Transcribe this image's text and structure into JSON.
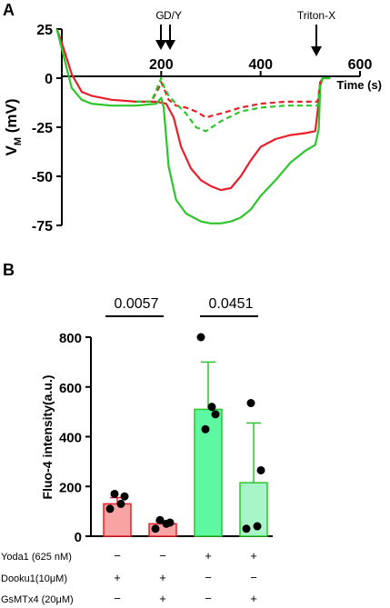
{
  "panel_a": {
    "label": "A",
    "ylabel_main": "V",
    "ylabel_sub": "M",
    "ylabel_unit": " (mV)",
    "xlabel": "Time (s)",
    "yticks": [
      "25",
      "0",
      "-25",
      "-50",
      "-75"
    ],
    "xticks": [
      "200",
      "400",
      "600"
    ],
    "ann_g": "G",
    "ann_dy": "D/Y",
    "ann_triton": "Triton-X"
  },
  "panel_b": {
    "label": "B",
    "ylabel": "Fluo-4 intensity(a.u.)",
    "yticks": [
      "0",
      "200",
      "400",
      "600",
      "800"
    ],
    "pval_1": "0.0057",
    "pval_2": "0.0451",
    "cond_yoda": "Yoda1 (625 nM)",
    "cond_dooku": "Dooku1(10μM)",
    "cond_gsmtx": "GsMTx4 (20μM)",
    "yoda_signs": [
      "−",
      "−",
      "+",
      "+"
    ],
    "dooku_signs": [
      "+",
      "+",
      "−",
      "−"
    ],
    "gsmtx_signs": [
      "−",
      "+",
      "−",
      "+"
    ]
  },
  "chart_data": [
    {
      "type": "line",
      "xlabel": "Time (s)",
      "ylabel": "VM (mV)",
      "xlim": [
        0,
        600
      ],
      "ylim": [
        -75,
        25
      ],
      "colors": {
        "red": "#e8202a",
        "green": "#2cc52c"
      },
      "annotations": [
        {
          "text": "G",
          "x": 195
        },
        {
          "text": "D/Y",
          "x": 220
        },
        {
          "text": "Triton-X",
          "x": 520
        }
      ],
      "series": [
        {
          "style": "solid",
          "color": "red",
          "x": [
            -10,
            0,
            20,
            40,
            60,
            100,
            150,
            190,
            210,
            225,
            240,
            260,
            280,
            300,
            320,
            340,
            360,
            380,
            400,
            430,
            460,
            490,
            510,
            517,
            520,
            525,
            540
          ],
          "y": [
            25,
            18,
            2,
            -7,
            -9,
            -11,
            -12,
            -12,
            -13,
            -20,
            -35,
            -46,
            -52,
            -55,
            -57,
            -56,
            -50,
            -42,
            -35,
            -31,
            -29,
            -28,
            -27,
            -12,
            -2,
            0,
            0
          ]
        },
        {
          "style": "solid",
          "color": "green",
          "x": [
            -10,
            0,
            20,
            40,
            60,
            100,
            150,
            190,
            200,
            205,
            215,
            230,
            250,
            280,
            300,
            320,
            340,
            360,
            380,
            400,
            430,
            460,
            490,
            510,
            517,
            520,
            525,
            540
          ],
          "y": [
            25,
            15,
            -5,
            -11,
            -13,
            -14,
            -14,
            -13,
            -10,
            -15,
            -45,
            -62,
            -69,
            -73,
            -74,
            -74,
            -73,
            -71,
            -67,
            -60,
            -52,
            -43,
            -37,
            -34,
            -26,
            -4,
            0,
            0
          ]
        },
        {
          "style": "dashed",
          "color": "red",
          "x": [
            150,
            180,
            195,
            200,
            205,
            215,
            230,
            250,
            270,
            290,
            320,
            360,
            400,
            450,
            500,
            515,
            520,
            525
          ],
          "y": [
            -12,
            -12,
            -5,
            -2,
            -5,
            -11,
            -14,
            -15,
            -17,
            -20,
            -18,
            -15,
            -13,
            -12,
            -12,
            -12,
            -2,
            0
          ]
        },
        {
          "style": "dashed",
          "color": "green",
          "x": [
            150,
            180,
            195,
            200,
            205,
            215,
            230,
            250,
            270,
            290,
            320,
            360,
            400,
            450,
            500,
            515,
            520,
            525
          ],
          "y": [
            -12,
            -12,
            -3,
            0,
            -4,
            -9,
            -13,
            -18,
            -25,
            -27,
            -22,
            -17,
            -15,
            -14,
            -14,
            -14,
            -2,
            0
          ]
        }
      ]
    },
    {
      "type": "bar",
      "ylabel": "Fluo-4 intensity(a.u.)",
      "ylim": [
        0,
        800
      ],
      "categories": [
        "Dooku1",
        "Dooku1 + GsMTx4",
        "Yoda1",
        "Yoda1 + GsMTx4"
      ],
      "values": [
        130,
        50,
        510,
        215
      ],
      "errors": [
        25,
        10,
        190,
        240
      ],
      "colors": [
        "#f8a4a4",
        "#f8a4a4",
        "#5ef7a2",
        "#a8f5c8"
      ],
      "edge_colors": [
        "#e8202a",
        "#e8202a",
        "#2cc52c",
        "#2cc52c"
      ],
      "points": [
        [
          110,
          160,
          170,
          130
        ],
        [
          30,
          55,
          65,
          50
        ],
        [
          800,
          490,
          430,
          520
        ],
        [
          30,
          265,
          535,
          40
        ]
      ],
      "comparisons": [
        {
          "bars": [
            0,
            1
          ],
          "p": "0.0057"
        },
        {
          "bars": [
            2,
            3
          ],
          "p": "0.0451"
        }
      ]
    }
  ]
}
